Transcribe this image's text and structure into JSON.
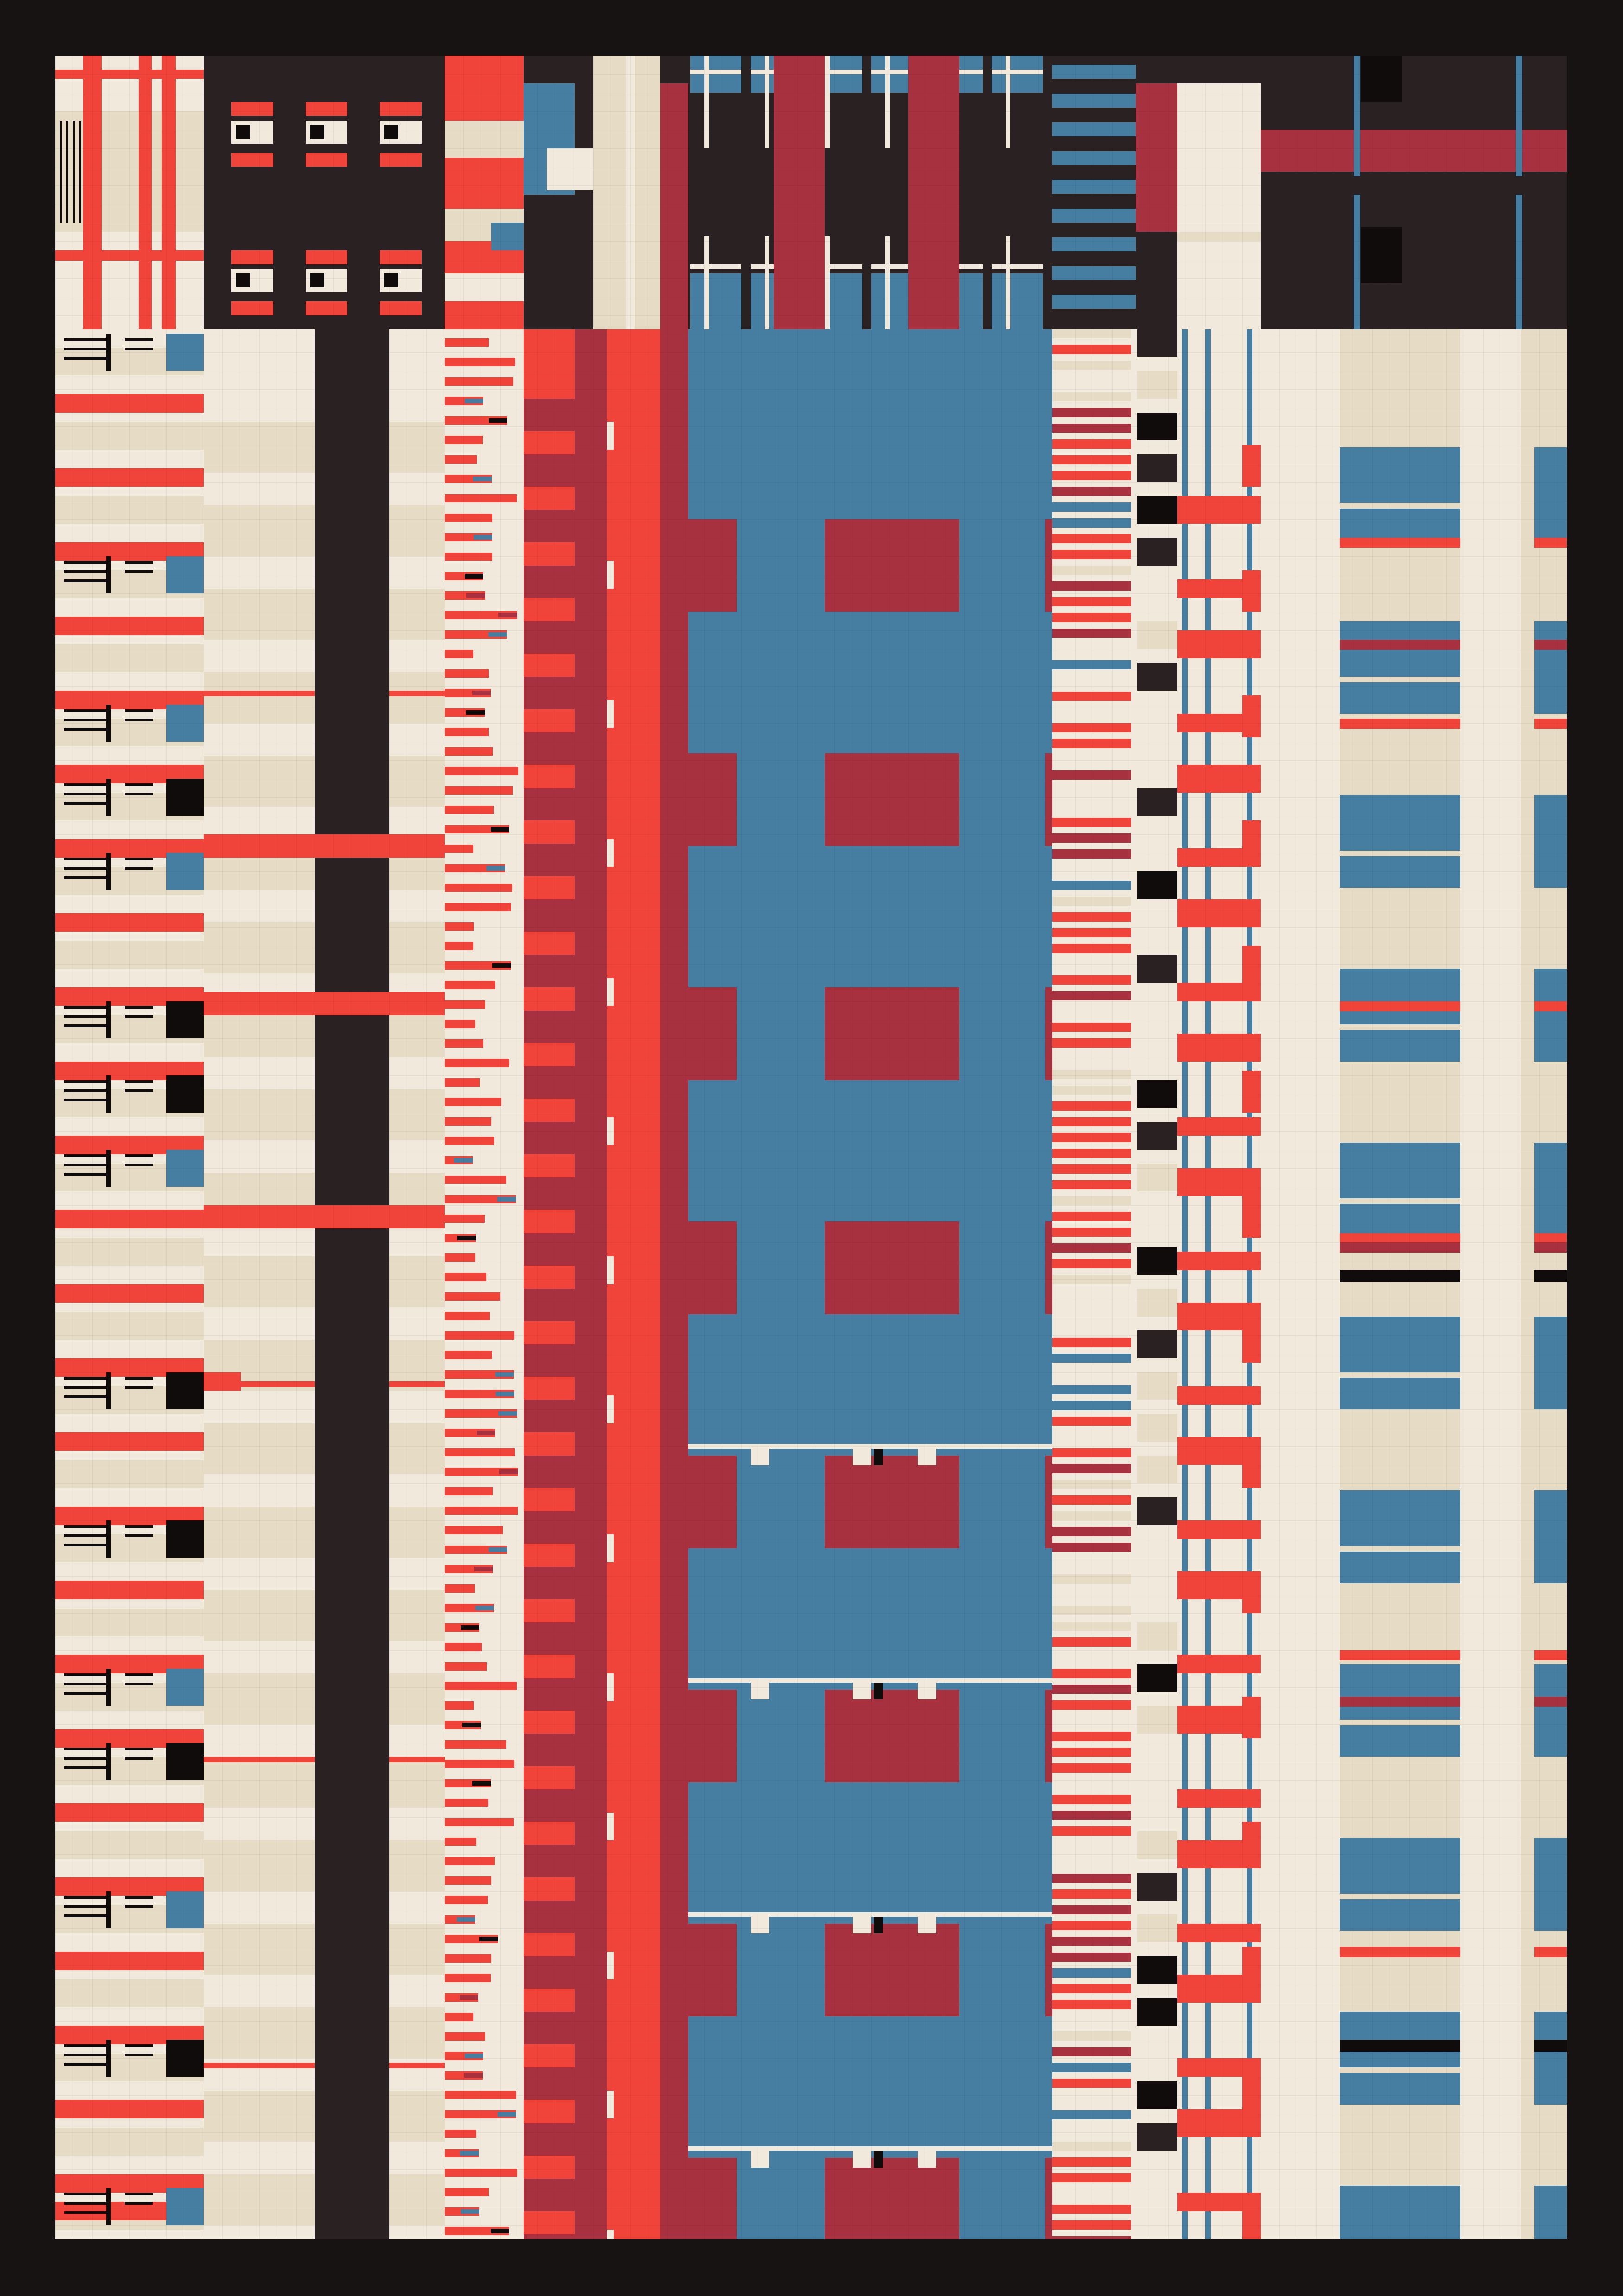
{
  "artwork": {
    "title": "",
    "palette": {
      "frame": "#171313",
      "cream": "#f1e9db",
      "sand": "#e6dcc6",
      "red": "#f0443b",
      "maroon": "#a8313f",
      "blue": "#457ea1",
      "dark": "#2a2222",
      "ink": "#100c0c"
    },
    "columns": [
      {
        "name": "band-1",
        "colors": [
          "cream",
          "sand",
          "red",
          "ink",
          "blue"
        ]
      },
      {
        "name": "band-2",
        "colors": [
          "dark",
          "cream",
          "red"
        ]
      },
      {
        "name": "band-3",
        "colors": [
          "cream",
          "red",
          "maroon",
          "blue",
          "ink"
        ]
      },
      {
        "name": "band-4",
        "colors": [
          "red",
          "maroon"
        ]
      },
      {
        "name": "band-5",
        "colors": [
          "blue",
          "maroon"
        ]
      },
      {
        "name": "band-6",
        "colors": [
          "cream",
          "red",
          "maroon",
          "blue",
          "dark"
        ]
      },
      {
        "name": "band-7",
        "colors": [
          "cream",
          "red",
          "blue"
        ]
      },
      {
        "name": "band-8",
        "colors": [
          "cream",
          "sand",
          "blue",
          "red",
          "maroon"
        ]
      }
    ]
  }
}
